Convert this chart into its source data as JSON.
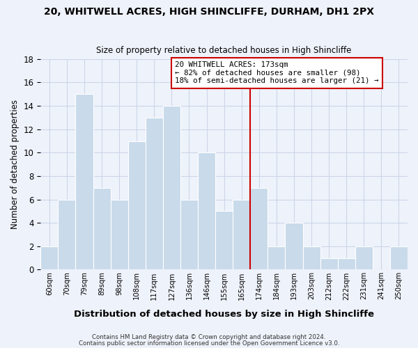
{
  "title1": "20, WHITWELL ACRES, HIGH SHINCLIFFE, DURHAM, DH1 2PX",
  "title2": "Size of property relative to detached houses in High Shincliffe",
  "xlabel": "Distribution of detached houses by size in High Shincliffe",
  "ylabel": "Number of detached properties",
  "bin_labels": [
    "60sqm",
    "70sqm",
    "79sqm",
    "89sqm",
    "98sqm",
    "108sqm",
    "117sqm",
    "127sqm",
    "136sqm",
    "146sqm",
    "155sqm",
    "165sqm",
    "174sqm",
    "184sqm",
    "193sqm",
    "203sqm",
    "212sqm",
    "222sqm",
    "231sqm",
    "241sqm",
    "250sqm"
  ],
  "bar_values": [
    2,
    6,
    15,
    7,
    6,
    11,
    13,
    14,
    6,
    10,
    5,
    6,
    7,
    2,
    4,
    2,
    1,
    1,
    2,
    0,
    2
  ],
  "bar_color": "#c9daea",
  "bar_edge_color": "#ffffff",
  "subject_line_color": "#cc0000",
  "annotation_text": "20 WHITWELL ACRES: 173sqm\n← 82% of detached houses are smaller (98)\n18% of semi-detached houses are larger (21) →",
  "annotation_box_color": "#ffffff",
  "annotation_box_edge_color": "#cc0000",
  "ylim": [
    0,
    18
  ],
  "yticks": [
    0,
    2,
    4,
    6,
    8,
    10,
    12,
    14,
    16,
    18
  ],
  "grid_color": "#ccd6e8",
  "background_color": "#eef2fa",
  "footer1": "Contains HM Land Registry data © Crown copyright and database right 2024.",
  "footer2": "Contains public sector information licensed under the Open Government Licence v3.0."
}
